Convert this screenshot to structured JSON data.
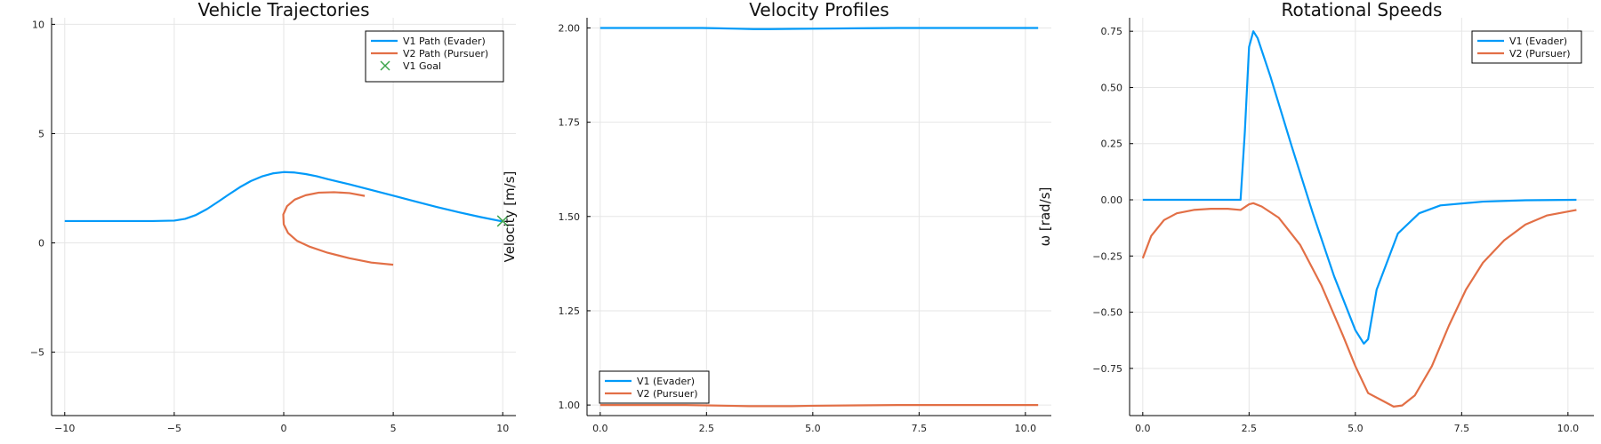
{
  "chart_data": [
    {
      "type": "line",
      "title": "Vehicle Trajectories",
      "xlabel": "",
      "ylabel": "",
      "xlim": [
        -10.6,
        10.6
      ],
      "ylim": [
        -7.9,
        10.3
      ],
      "xticks": [
        -10,
        -5,
        0,
        5,
        10
      ],
      "xtick_labels": [
        "−10",
        "−5",
        "0",
        "5",
        "10"
      ],
      "yticks": [
        -5,
        0,
        5,
        10
      ],
      "ytick_labels": [
        "−5",
        "0",
        "5",
        "10"
      ],
      "grid": true,
      "legend_position": "top-right",
      "series": [
        {
          "name": "V1 Path (Evader)",
          "color": "#009af9",
          "marker": "line",
          "x": [
            -10,
            -8,
            -6,
            -5,
            -4.5,
            -4,
            -3.5,
            -3,
            -2.5,
            -2,
            -1.5,
            -1,
            -0.5,
            0,
            0.5,
            1,
            1.5,
            2,
            3,
            4,
            5,
            6,
            7,
            8,
            9,
            10
          ],
          "y": [
            1.0,
            1.0,
            1.0,
            1.02,
            1.1,
            1.28,
            1.55,
            1.88,
            2.22,
            2.55,
            2.83,
            3.04,
            3.18,
            3.24,
            3.22,
            3.15,
            3.05,
            2.92,
            2.68,
            2.42,
            2.16,
            1.9,
            1.64,
            1.4,
            1.18,
            0.98
          ]
        },
        {
          "name": "V2 Path (Pursuer)",
          "color": "#e26f46",
          "marker": "line",
          "x": [
            3.7,
            3.0,
            2.3,
            1.6,
            1.0,
            0.5,
            0.15,
            -0.02,
            0.0,
            0.2,
            0.6,
            1.2,
            2.0,
            3.0,
            4.0,
            5.0
          ],
          "y": [
            2.15,
            2.28,
            2.32,
            2.3,
            2.18,
            1.98,
            1.68,
            1.3,
            0.85,
            0.45,
            0.1,
            -0.18,
            -0.45,
            -0.7,
            -0.9,
            -1.0
          ]
        },
        {
          "name": "V1 Goal",
          "color": "#3da44d",
          "marker": "x",
          "x": [
            10
          ],
          "y": [
            1
          ]
        }
      ]
    },
    {
      "type": "line",
      "title": "Velocity Profiles",
      "xlabel": "",
      "ylabel": "Velocity [m/s]",
      "xlim": [
        -0.31,
        10.61
      ],
      "ylim": [
        0.972,
        2.027
      ],
      "xticks": [
        0,
        2.5,
        5,
        7.5,
        10
      ],
      "xtick_labels": [
        "0.0",
        "2.5",
        "5.0",
        "7.5",
        "10.0"
      ],
      "yticks": [
        1.0,
        1.25,
        1.5,
        1.75,
        2.0
      ],
      "ytick_labels": [
        "1.00",
        "1.25",
        "1.50",
        "1.75",
        "2.00"
      ],
      "grid": true,
      "legend_position": "bottom-left",
      "series": [
        {
          "name": "V1 (Evader)",
          "color": "#009af9",
          "x": [
            0,
            1,
            2,
            2.4,
            2.8,
            3.2,
            3.6,
            4.0,
            5.0,
            6.0,
            7.0,
            8.0,
            9.0,
            10.3
          ],
          "y": [
            2.0,
            2.0,
            2.0,
            2.0,
            1.999,
            1.998,
            1.997,
            1.997,
            1.998,
            1.999,
            2.0,
            2.0,
            2.0,
            2.0
          ]
        },
        {
          "name": "V2 (Pursuer)",
          "color": "#e26f46",
          "x": [
            0,
            1,
            2,
            2.5,
            3.0,
            3.5,
            4.0,
            4.5,
            5.0,
            6.0,
            7.0,
            8.0,
            9.0,
            10.3
          ],
          "y": [
            1.0,
            1.0,
            1.0,
            0.999,
            0.998,
            0.997,
            0.997,
            0.997,
            0.998,
            0.999,
            1.0,
            1.0,
            1.0,
            1.0
          ]
        }
      ]
    },
    {
      "type": "line",
      "title": "Rotational Speeds",
      "xlabel": "",
      "ylabel": "ω [rad/s]",
      "xlim": [
        -0.31,
        10.61
      ],
      "ylim": [
        -0.96,
        0.81
      ],
      "xticks": [
        0,
        2.5,
        5,
        7.5,
        10
      ],
      "xtick_labels": [
        "0.0",
        "2.5",
        "5.0",
        "7.5",
        "10.0"
      ],
      "yticks": [
        -0.75,
        -0.5,
        -0.25,
        0.0,
        0.25,
        0.5,
        0.75
      ],
      "ytick_labels": [
        "−0.75",
        "−0.50",
        "−0.25",
        "0.00",
        "0.25",
        "0.50",
        "0.75"
      ],
      "grid": true,
      "legend_position": "top-right",
      "series": [
        {
          "name": "V1 (Evader)",
          "color": "#009af9",
          "x": [
            0,
            1,
            2,
            2.3,
            2.4,
            2.5,
            2.6,
            2.7,
            3.0,
            3.5,
            4.0,
            4.5,
            5.0,
            5.2,
            5.3,
            5.5,
            6.0,
            6.5,
            7.0,
            8.0,
            9.0,
            10.2
          ],
          "y": [
            0,
            0,
            0,
            0,
            0.3,
            0.68,
            0.75,
            0.72,
            0.55,
            0.24,
            -0.06,
            -0.34,
            -0.58,
            -0.64,
            -0.62,
            -0.4,
            -0.15,
            -0.06,
            -0.025,
            -0.008,
            -0.002,
            0.0
          ]
        },
        {
          "name": "V2 (Pursuer)",
          "color": "#e26f46",
          "x": [
            0,
            0.2,
            0.5,
            0.8,
            1.2,
            1.6,
            2.0,
            2.3,
            2.5,
            2.6,
            2.8,
            3.2,
            3.7,
            4.2,
            4.7,
            5.0,
            5.3,
            5.6,
            5.9,
            6.1,
            6.4,
            6.8,
            7.2,
            7.6,
            8.0,
            8.5,
            9.0,
            9.5,
            10.2
          ],
          "y": [
            -0.26,
            -0.16,
            -0.09,
            -0.06,
            -0.045,
            -0.04,
            -0.04,
            -0.045,
            -0.02,
            -0.015,
            -0.03,
            -0.08,
            -0.2,
            -0.38,
            -0.6,
            -0.74,
            -0.86,
            -0.89,
            -0.92,
            -0.915,
            -0.87,
            -0.74,
            -0.56,
            -0.4,
            -0.28,
            -0.18,
            -0.11,
            -0.07,
            -0.045
          ]
        }
      ]
    }
  ]
}
